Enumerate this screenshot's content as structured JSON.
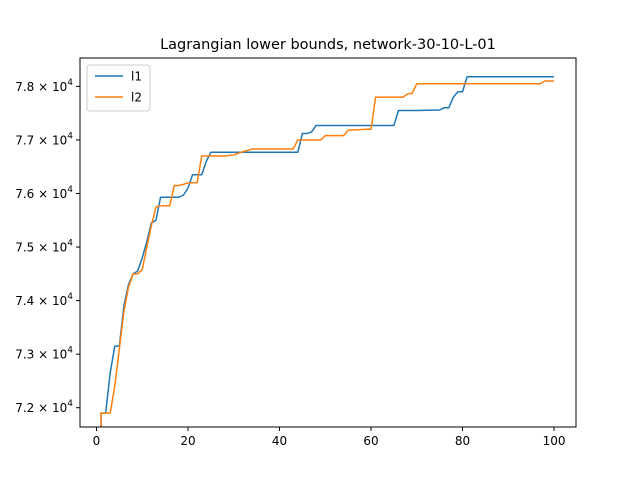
{
  "chart_data": {
    "type": "line",
    "title": "Lagrangian lower bounds, network-30-10-L-01",
    "xlabel": "",
    "ylabel": "",
    "xlim": [
      -3.6,
      104.8
    ],
    "ylim": [
      71640,
      78530
    ],
    "xticks": [
      0,
      20,
      40,
      60,
      80,
      100
    ],
    "yticks": [
      72000,
      73000,
      74000,
      75000,
      76000,
      77000,
      78000
    ],
    "ytick_labels": [
      {
        "mantissa": "7.2",
        "exponent": "4"
      },
      {
        "mantissa": "7.3",
        "exponent": "4"
      },
      {
        "mantissa": "7.4",
        "exponent": "4"
      },
      {
        "mantissa": "7.5",
        "exponent": "4"
      },
      {
        "mantissa": "7.6",
        "exponent": "4"
      },
      {
        "mantissa": "7.7",
        "exponent": "4"
      },
      {
        "mantissa": "7.8",
        "exponent": "4"
      }
    ],
    "grid": false,
    "legend_position": "top-left",
    "series": [
      {
        "name": "l1",
        "color": "#1f77b4",
        "points": [
          [
            1,
            71640
          ],
          [
            1,
            71900
          ],
          [
            2,
            71900
          ],
          [
            3,
            72650
          ],
          [
            4,
            73150
          ],
          [
            5,
            73150
          ],
          [
            6,
            73900
          ],
          [
            7,
            74300
          ],
          [
            8,
            74500
          ],
          [
            9,
            74550
          ],
          [
            10,
            74800
          ],
          [
            11,
            75100
          ],
          [
            12,
            75450
          ],
          [
            13,
            75500
          ],
          [
            14,
            75930
          ],
          [
            15,
            75930
          ],
          [
            16,
            75930
          ],
          [
            17,
            75930
          ],
          [
            18,
            75930
          ],
          [
            19,
            75970
          ],
          [
            20,
            76100
          ],
          [
            21,
            76350
          ],
          [
            22,
            76350
          ],
          [
            23,
            76350
          ],
          [
            24,
            76600
          ],
          [
            25,
            76770
          ],
          [
            26,
            76770
          ],
          [
            30,
            76770
          ],
          [
            35,
            76770
          ],
          [
            40,
            76770
          ],
          [
            44,
            76770
          ],
          [
            45,
            77120
          ],
          [
            46,
            77120
          ],
          [
            47,
            77150
          ],
          [
            48,
            77270
          ],
          [
            50,
            77270
          ],
          [
            55,
            77270
          ],
          [
            60,
            77270
          ],
          [
            65,
            77270
          ],
          [
            66,
            77550
          ],
          [
            70,
            77550
          ],
          [
            75,
            77560
          ],
          [
            76,
            77600
          ],
          [
            77,
            77600
          ],
          [
            78,
            77800
          ],
          [
            79,
            77900
          ],
          [
            80,
            77900
          ],
          [
            81,
            78180
          ],
          [
            90,
            78180
          ],
          [
            100,
            78180
          ]
        ]
      },
      {
        "name": "l2",
        "color": "#ff7f0e",
        "points": [
          [
            1,
            71640
          ],
          [
            1,
            71900
          ],
          [
            3,
            71900
          ],
          [
            4,
            72400
          ],
          [
            5,
            73100
          ],
          [
            6,
            73800
          ],
          [
            7,
            74250
          ],
          [
            8,
            74500
          ],
          [
            9,
            74500
          ],
          [
            10,
            74580
          ],
          [
            11,
            75000
          ],
          [
            12,
            75400
          ],
          [
            13,
            75750
          ],
          [
            14,
            75770
          ],
          [
            15,
            75770
          ],
          [
            16,
            75770
          ],
          [
            17,
            76150
          ],
          [
            18,
            76150
          ],
          [
            19,
            76170
          ],
          [
            20,
            76200
          ],
          [
            22,
            76200
          ],
          [
            23,
            76700
          ],
          [
            24,
            76700
          ],
          [
            25,
            76700
          ],
          [
            28,
            76700
          ],
          [
            30,
            76720
          ],
          [
            32,
            76780
          ],
          [
            34,
            76830
          ],
          [
            40,
            76830
          ],
          [
            43,
            76830
          ],
          [
            44,
            77000
          ],
          [
            48,
            77000
          ],
          [
            49,
            77000
          ],
          [
            50,
            77080
          ],
          [
            54,
            77080
          ],
          [
            55,
            77180
          ],
          [
            59,
            77200
          ],
          [
            60,
            77200
          ],
          [
            61,
            77800
          ],
          [
            65,
            77800
          ],
          [
            67,
            77800
          ],
          [
            68,
            77860
          ],
          [
            69,
            77870
          ],
          [
            70,
            78050
          ],
          [
            75,
            78050
          ],
          [
            80,
            78050
          ],
          [
            90,
            78050
          ],
          [
            97,
            78050
          ],
          [
            98,
            78100
          ],
          [
            100,
            78100
          ]
        ]
      }
    ]
  }
}
